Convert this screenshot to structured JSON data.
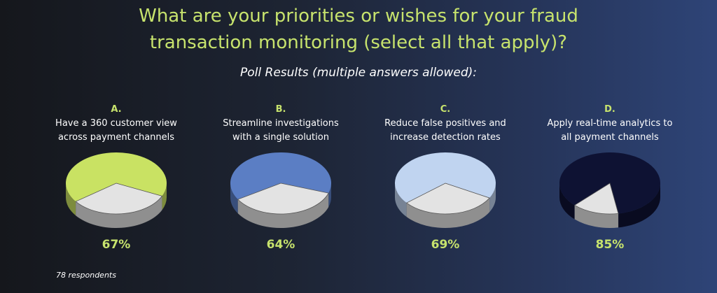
{
  "title": {
    "line1": "What are your priorities or wishes for your fraud",
    "line2": "transaction monitoring (select all that apply)?"
  },
  "subtitle": "Poll Results (multiple answers allowed):",
  "respondents": "78 respondents",
  "colors": {
    "accent": "#c7e36d",
    "remainder": "#e3e3e3"
  },
  "chart_data": {
    "type": "pie",
    "title": "What are your priorities or wishes for your fraud transaction monitoring (select all that apply)?",
    "subtitle": "Poll Results (multiple answers allowed):",
    "charts": [
      {
        "letter": "A.",
        "line1": "Have a 360 customer view",
        "line2": "across payment channels",
        "value": 67,
        "label": "67%",
        "color": "#c9e263"
      },
      {
        "letter": "B.",
        "line1": "Streamline investigations",
        "line2": "with a single solution",
        "value": 64,
        "label": "64%",
        "color": "#5b7ec4"
      },
      {
        "letter": "C.",
        "line1": "Reduce false positives and",
        "line2": "increase detection rates",
        "value": 69,
        "label": "69%",
        "color": "#c0d4f0"
      },
      {
        "letter": "D.",
        "line1": "Apply real-time analytics to",
        "line2": "all payment channels",
        "value": 85,
        "label": "85%",
        "color": "#0e1233"
      }
    ]
  }
}
